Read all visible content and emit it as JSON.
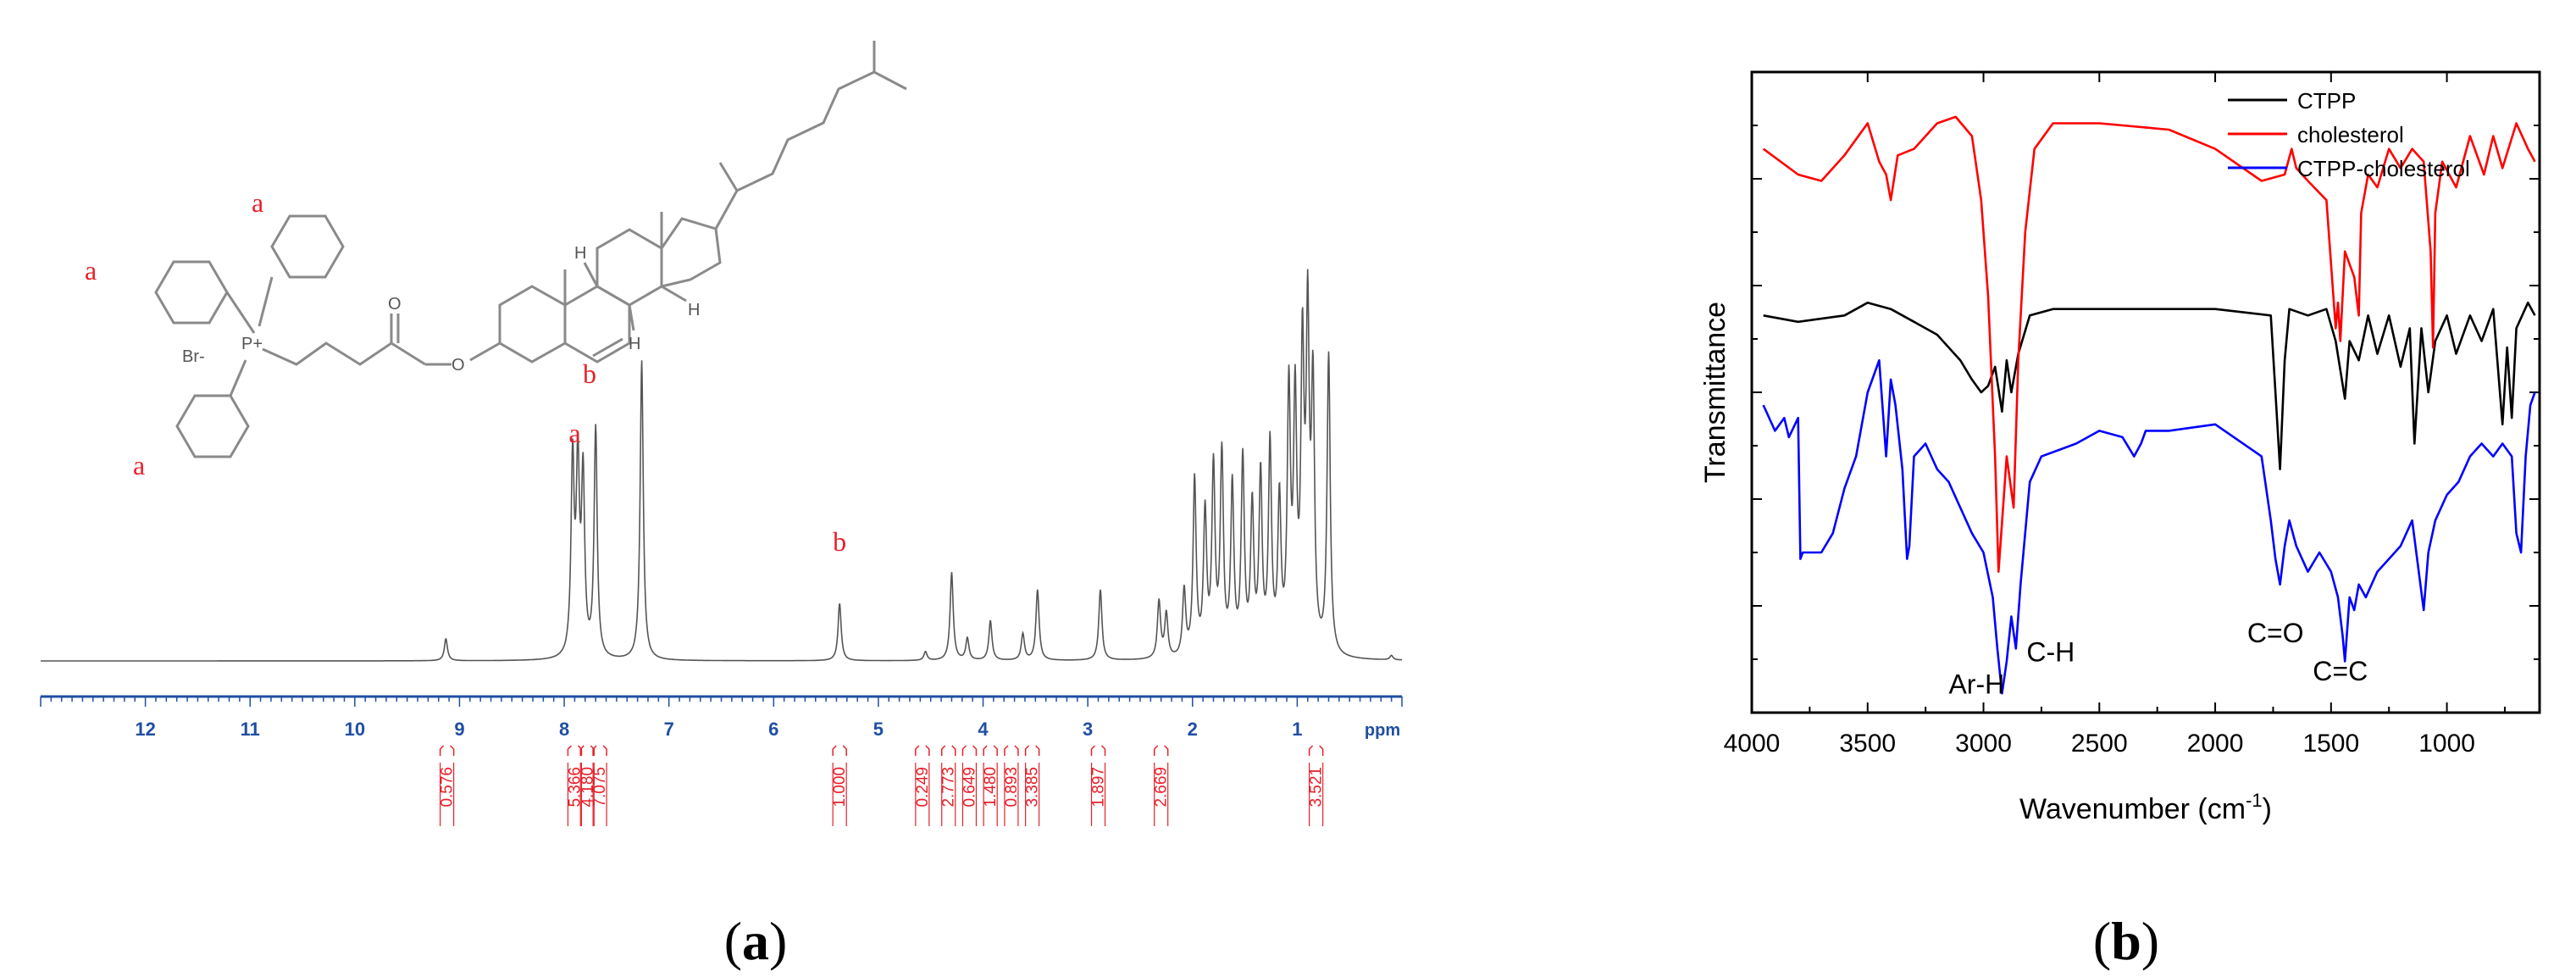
{
  "figure": {
    "panel_a": {
      "paren_open": "(",
      "letter": "a",
      "paren_close": ")"
    },
    "panel_b": {
      "paren_open": "(",
      "letter": "b",
      "paren_close": ")"
    }
  },
  "colors": {
    "nmr_axis": "#1f4fa3",
    "integral": "#e8202a",
    "ann": "#e8202a",
    "ctpp": "#000000",
    "cholesterol": "#ff0000",
    "ctpp_cholesterol": "#0000ff"
  },
  "chart_data": [
    {
      "type": "line",
      "subtype": "1H NMR spectrum",
      "x_unit_label": "ppm",
      "xlim": [
        13,
        0
      ],
      "ticks": [
        "12",
        "11",
        "10",
        "9",
        "8",
        "7",
        "6",
        "5",
        "4",
        "3",
        "2",
        "1"
      ],
      "peak_labels": [
        {
          "text": "a",
          "ppm": 7.9
        },
        {
          "text": "b",
          "ppm": 5.37
        }
      ],
      "structure_labels": [
        "a",
        "a",
        "a",
        "b"
      ],
      "structure_atoms": [
        "Br-",
        "P+",
        "O",
        "O",
        "H",
        "H",
        "H"
      ],
      "integrals": [
        {
          "ppm": 9.12,
          "value": "0.576"
        },
        {
          "ppm": 7.9,
          "value": "5.366"
        },
        {
          "ppm": 7.78,
          "value": "4.180"
        },
        {
          "ppm": 7.66,
          "value": "7.075"
        },
        {
          "ppm": 5.37,
          "value": "1.000"
        },
        {
          "ppm": 4.58,
          "value": "0.249"
        },
        {
          "ppm": 4.33,
          "value": "2.773"
        },
        {
          "ppm": 4.13,
          "value": "0.649"
        },
        {
          "ppm": 3.93,
          "value": "1.480"
        },
        {
          "ppm": 3.73,
          "value": "0.893"
        },
        {
          "ppm": 3.53,
          "value": "3.385"
        },
        {
          "ppm": 2.9,
          "value": "1.897"
        },
        {
          "ppm": 2.3,
          "value": "2.669"
        },
        {
          "ppm": 0.82,
          "value": "3.521"
        }
      ],
      "peaks": [
        {
          "ppm": 9.13,
          "h": 0.05
        },
        {
          "ppm": 7.92,
          "h": 0.44
        },
        {
          "ppm": 7.87,
          "h": 0.42
        },
        {
          "ppm": 7.82,
          "h": 0.4
        },
        {
          "ppm": 7.7,
          "h": 0.52
        },
        {
          "ppm": 7.26,
          "h": 0.68
        },
        {
          "ppm": 5.37,
          "h": 0.13
        },
        {
          "ppm": 4.55,
          "h": 0.02
        },
        {
          "ppm": 4.3,
          "h": 0.2
        },
        {
          "ppm": 4.15,
          "h": 0.05
        },
        {
          "ppm": 3.93,
          "h": 0.09
        },
        {
          "ppm": 3.62,
          "h": 0.06
        },
        {
          "ppm": 3.48,
          "h": 0.16
        },
        {
          "ppm": 2.88,
          "h": 0.16
        },
        {
          "ppm": 2.32,
          "h": 0.13
        },
        {
          "ppm": 2.25,
          "h": 0.1
        },
        {
          "ppm": 2.08,
          "h": 0.15
        },
        {
          "ppm": 1.98,
          "h": 0.4
        },
        {
          "ppm": 1.88,
          "h": 0.32
        },
        {
          "ppm": 1.8,
          "h": 0.42
        },
        {
          "ppm": 1.72,
          "h": 0.45
        },
        {
          "ppm": 1.62,
          "h": 0.38
        },
        {
          "ppm": 1.52,
          "h": 0.44
        },
        {
          "ppm": 1.43,
          "h": 0.33
        },
        {
          "ppm": 1.35,
          "h": 0.4
        },
        {
          "ppm": 1.26,
          "h": 0.47
        },
        {
          "ppm": 1.17,
          "h": 0.34
        },
        {
          "ppm": 1.08,
          "h": 0.58
        },
        {
          "ppm": 1.02,
          "h": 0.55
        },
        {
          "ppm": 0.95,
          "h": 0.65
        },
        {
          "ppm": 0.9,
          "h": 0.72
        },
        {
          "ppm": 0.85,
          "h": 0.58
        },
        {
          "ppm": 0.7,
          "h": 0.68
        },
        {
          "ppm": 0.1,
          "h": 0.01
        }
      ]
    },
    {
      "type": "line",
      "subtype": "FTIR spectrum",
      "xlabel_main": "Wavenumber (cm",
      "xlabel_sup": "-1",
      "xlabel_end": ")",
      "ylabel": "Transmittance",
      "xlim": [
        4000,
        600
      ],
      "ylim": [
        0,
        1
      ],
      "xticks": [
        4000,
        3500,
        3000,
        2500,
        2000,
        1500,
        1000
      ],
      "legend_position": "top-right",
      "annotations": [
        {
          "text": "Ar-H",
          "x": 3030,
          "y": 0.03
        },
        {
          "text": "C-H",
          "x": 2710,
          "y": 0.08
        },
        {
          "text": "C=O",
          "x": 1740,
          "y": 0.11
        },
        {
          "text": "C=C",
          "x": 1460,
          "y": 0.05
        }
      ],
      "series": [
        {
          "name": "CTPP",
          "color": "#000000",
          "x": [
            3950,
            3800,
            3600,
            3500,
            3400,
            3300,
            3200,
            3100,
            3050,
            3010,
            2980,
            2950,
            2920,
            2900,
            2880,
            2850,
            2800,
            2700,
            2400,
            2000,
            1760,
            1740,
            1720,
            1700,
            1680,
            1600,
            1520,
            1480,
            1440,
            1420,
            1380,
            1340,
            1300,
            1250,
            1200,
            1160,
            1140,
            1110,
            1080,
            1050,
            1000,
            960,
            900,
            850,
            800,
            760,
            740,
            720,
            700,
            650,
            620
          ],
          "y": [
            0.62,
            0.61,
            0.62,
            0.64,
            0.63,
            0.61,
            0.59,
            0.55,
            0.52,
            0.5,
            0.51,
            0.54,
            0.47,
            0.55,
            0.5,
            0.56,
            0.62,
            0.63,
            0.63,
            0.63,
            0.62,
            0.5,
            0.38,
            0.55,
            0.63,
            0.62,
            0.63,
            0.58,
            0.49,
            0.58,
            0.55,
            0.62,
            0.56,
            0.62,
            0.54,
            0.6,
            0.42,
            0.6,
            0.5,
            0.58,
            0.62,
            0.56,
            0.62,
            0.58,
            0.63,
            0.45,
            0.57,
            0.46,
            0.6,
            0.64,
            0.62
          ]
        },
        {
          "name": "cholesterol",
          "color": "#ff0000",
          "x": [
            3950,
            3800,
            3700,
            3600,
            3500,
            3450,
            3420,
            3400,
            3370,
            3300,
            3200,
            3120,
            3050,
            3010,
            2980,
            2950,
            2935,
            2900,
            2870,
            2850,
            2820,
            2780,
            2700,
            2500,
            2200,
            2000,
            1800,
            1700,
            1670,
            1650,
            1600,
            1520,
            1480,
            1470,
            1460,
            1440,
            1400,
            1380,
            1370,
            1340,
            1300,
            1250,
            1200,
            1150,
            1100,
            1070,
            1060,
            1050,
            1020,
            960,
            900,
            840,
            800,
            760,
            700,
            650,
            620
          ],
          "y": [
            0.88,
            0.84,
            0.83,
            0.87,
            0.92,
            0.86,
            0.84,
            0.8,
            0.87,
            0.88,
            0.92,
            0.93,
            0.9,
            0.8,
            0.65,
            0.4,
            0.22,
            0.4,
            0.32,
            0.55,
            0.75,
            0.88,
            0.92,
            0.92,
            0.91,
            0.88,
            0.83,
            0.84,
            0.88,
            0.85,
            0.83,
            0.8,
            0.6,
            0.64,
            0.58,
            0.72,
            0.68,
            0.62,
            0.78,
            0.84,
            0.82,
            0.88,
            0.85,
            0.88,
            0.86,
            0.72,
            0.57,
            0.78,
            0.86,
            0.82,
            0.9,
            0.84,
            0.9,
            0.85,
            0.92,
            0.88,
            0.86
          ]
        },
        {
          "name": "CTPP-cholesterol",
          "color": "#0000ff",
          "x": [
            3950,
            3900,
            3860,
            3840,
            3800,
            3790,
            3780,
            3700,
            3650,
            3600,
            3550,
            3500,
            3450,
            3420,
            3400,
            3380,
            3350,
            3330,
            3320,
            3300,
            3250,
            3200,
            3150,
            3100,
            3050,
            3000,
            2960,
            2940,
            2920,
            2900,
            2880,
            2860,
            2840,
            2800,
            2750,
            2600,
            2500,
            2400,
            2350,
            2320,
            2300,
            2200,
            2000,
            1800,
            1760,
            1740,
            1720,
            1700,
            1680,
            1650,
            1600,
            1550,
            1500,
            1470,
            1450,
            1440,
            1420,
            1400,
            1380,
            1350,
            1300,
            1250,
            1200,
            1150,
            1100,
            1080,
            1050,
            1000,
            950,
            900,
            850,
            800,
            760,
            720,
            700,
            680,
            660,
            640,
            620
          ],
          "y": [
            0.48,
            0.44,
            0.46,
            0.43,
            0.46,
            0.24,
            0.25,
            0.25,
            0.28,
            0.35,
            0.4,
            0.5,
            0.55,
            0.4,
            0.52,
            0.48,
            0.38,
            0.24,
            0.26,
            0.4,
            0.42,
            0.38,
            0.36,
            0.32,
            0.28,
            0.25,
            0.18,
            0.1,
            0.03,
            0.08,
            0.15,
            0.1,
            0.2,
            0.36,
            0.4,
            0.42,
            0.44,
            0.43,
            0.4,
            0.42,
            0.44,
            0.44,
            0.45,
            0.4,
            0.3,
            0.24,
            0.2,
            0.26,
            0.3,
            0.26,
            0.22,
            0.25,
            0.22,
            0.18,
            0.12,
            0.08,
            0.18,
            0.16,
            0.2,
            0.18,
            0.22,
            0.24,
            0.26,
            0.3,
            0.16,
            0.25,
            0.3,
            0.34,
            0.36,
            0.4,
            0.42,
            0.4,
            0.42,
            0.4,
            0.28,
            0.25,
            0.4,
            0.48,
            0.5
          ]
        }
      ]
    }
  ]
}
